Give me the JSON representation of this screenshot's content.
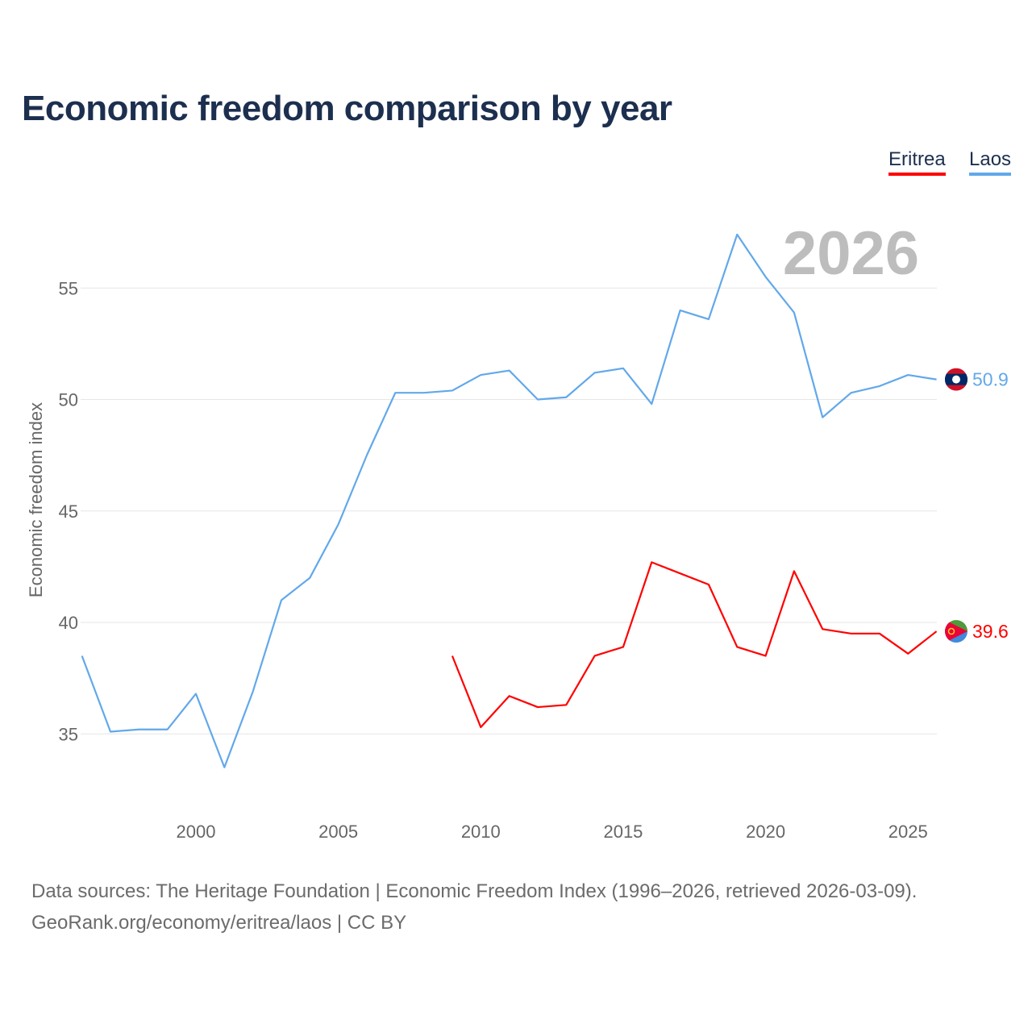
{
  "chart_data": {
    "type": "line",
    "title": "Economic freedom comparison by year",
    "xlabel": "",
    "ylabel": "Economic freedom index",
    "year_watermark": "2026",
    "x_ticks": [
      "2000",
      "2005",
      "2010",
      "2015",
      "2020",
      "2025"
    ],
    "y_ticks": [
      "35",
      "40",
      "45",
      "50",
      "55"
    ],
    "xlim": [
      1996,
      2026
    ],
    "ylim": [
      32,
      58
    ],
    "grid": true,
    "legend_placement": "top-right",
    "series": [
      {
        "name": "Eritrea",
        "color": "#ff0000",
        "end_label": "39.6",
        "x": [
          2009,
          2010,
          2011,
          2012,
          2013,
          2014,
          2015,
          2016,
          2017,
          2018,
          2019,
          2020,
          2021,
          2022,
          2023,
          2024,
          2025,
          2026
        ],
        "values": [
          38.5,
          35.3,
          36.7,
          36.2,
          36.3,
          38.5,
          38.9,
          42.7,
          42.2,
          41.7,
          38.9,
          38.5,
          42.3,
          39.7,
          39.5,
          39.5,
          38.6,
          39.6
        ]
      },
      {
        "name": "Laos",
        "color": "#62a8ea",
        "end_label": "50.9",
        "x": [
          1996,
          1997,
          1998,
          1999,
          2000,
          2001,
          2002,
          2003,
          2004,
          2005,
          2006,
          2007,
          2008,
          2009,
          2010,
          2011,
          2012,
          2013,
          2014,
          2015,
          2016,
          2017,
          2018,
          2019,
          2020,
          2021,
          2022,
          2023,
          2024,
          2025,
          2026
        ],
        "values": [
          38.5,
          35.1,
          35.2,
          35.2,
          36.8,
          33.5,
          36.9,
          41.0,
          42.0,
          44.4,
          47.5,
          50.3,
          50.3,
          50.4,
          51.1,
          51.3,
          50.0,
          50.1,
          51.2,
          51.4,
          49.8,
          54.0,
          53.6,
          57.4,
          55.5,
          53.9,
          49.2,
          50.3,
          50.6,
          51.1,
          50.9
        ]
      }
    ]
  },
  "footer": {
    "line1": "Data sources: The Heritage Foundation | Economic Freedom Index (1996–2026, retrieved 2026-03-09).",
    "line2": "GeoRank.org/economy/eritrea/laos | CC BY"
  }
}
